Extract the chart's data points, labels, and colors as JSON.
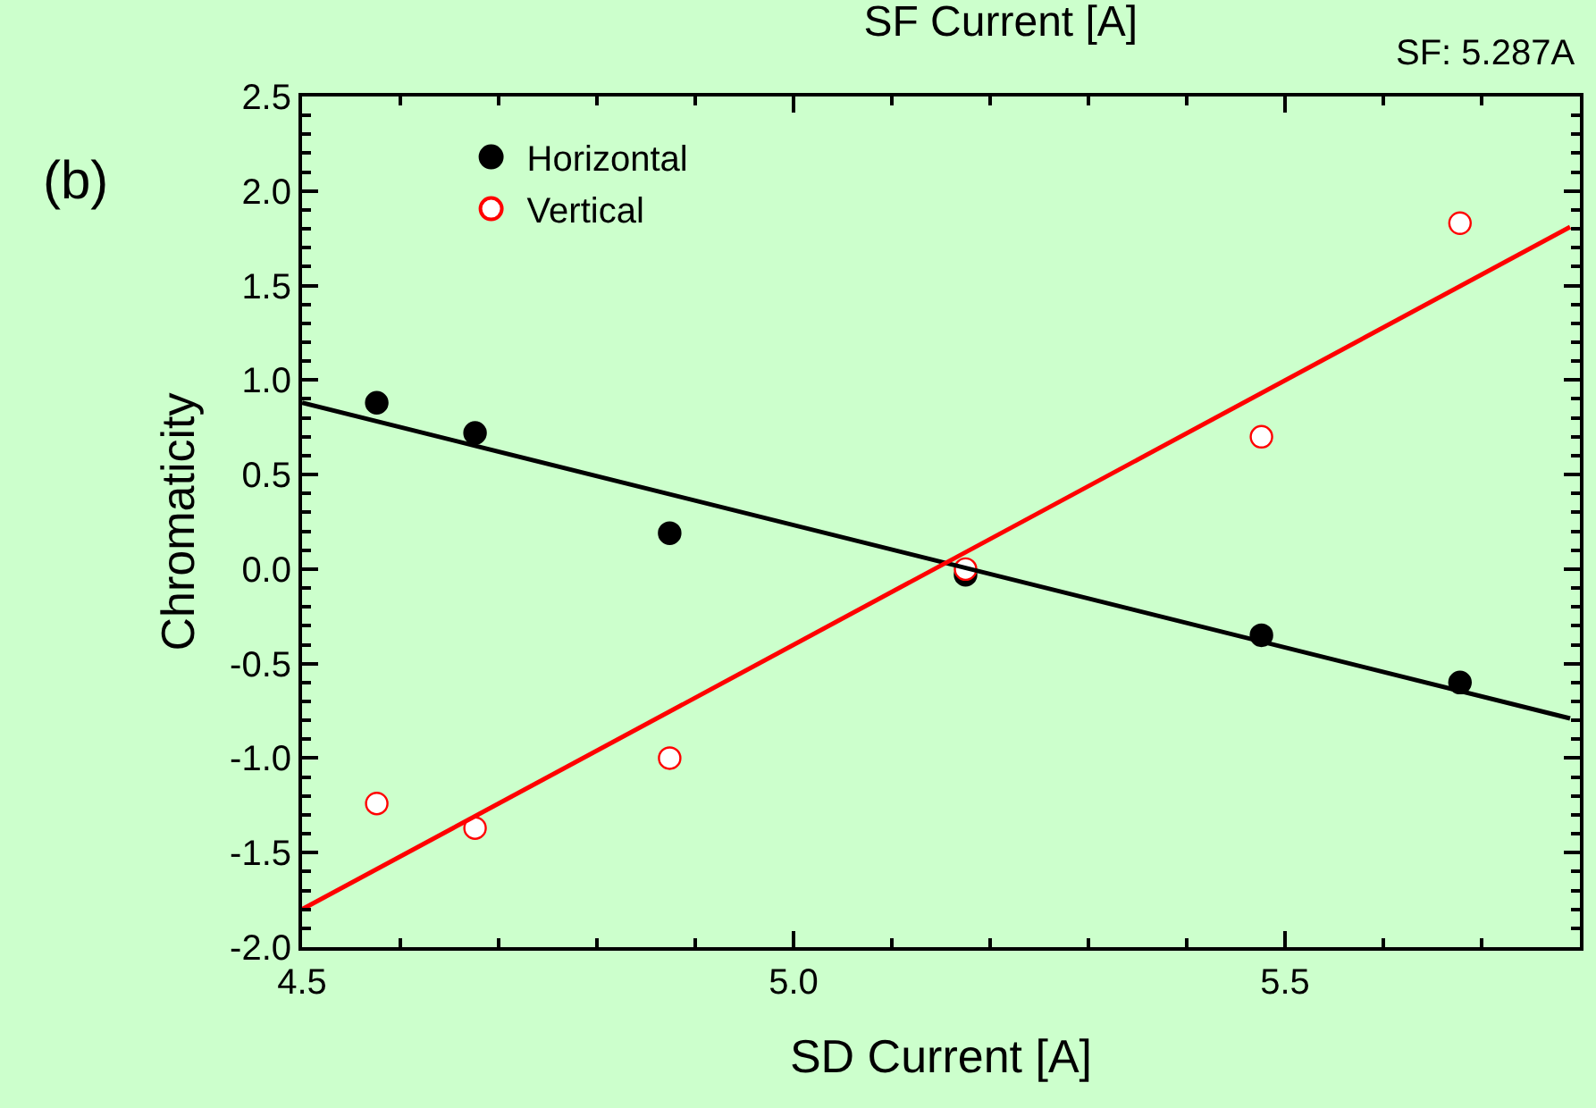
{
  "chart_data": {
    "type": "scatter",
    "title": "SF Current [A]",
    "xlabel": "SD Current [A]",
    "ylabel": "Chromaticity",
    "annotations": [
      "(b)",
      "SF: 5.287A"
    ],
    "series": [
      {
        "name": "Horizontal",
        "color": "#000000",
        "marker": "circle",
        "x": [
          4.576,
          4.676,
          4.874,
          5.175,
          5.476,
          5.678
        ],
        "values": [
          0.88,
          0.72,
          0.19,
          -0.03,
          -0.35,
          -0.6
        ]
      },
      {
        "name": "Vertical",
        "color": "#ff0000",
        "marker": "circle",
        "x": [
          4.576,
          4.676,
          4.874,
          5.175,
          5.476,
          5.678
        ],
        "values": [
          -1.24,
          -1.37,
          -1.0,
          0.0,
          0.7,
          1.83
        ]
      },
      {
        "type": "line",
        "color": "#000000",
        "marker": "none",
        "line_style": "solid",
        "x": [
          4.5,
          5.79
        ],
        "values": [
          0.88,
          -0.79
        ]
      },
      {
        "type": "line",
        "color": "#ff0000",
        "marker": "none",
        "line_style": "solid",
        "x": [
          4.5,
          5.79
        ],
        "values": [
          -1.8,
          1.81
        ]
      }
    ],
    "xlim": [
      4.5,
      5.8
    ],
    "xticks": [
      {
        "value": 4.5,
        "label": "4.5"
      },
      {
        "value": 5.0,
        "label": "5.0"
      },
      {
        "value": 5.5,
        "label": "5.5"
      }
    ],
    "ylim": [
      -2.0,
      2.5
    ],
    "yticks": [
      {
        "value": -2.0,
        "label": "-2.0"
      },
      {
        "value": -1.5,
        "label": "-1.5"
      },
      {
        "value": -1.0,
        "label": "-1.0"
      },
      {
        "value": -0.5,
        "label": "-0.5"
      },
      {
        "value": 0.0,
        "label": "0.0"
      },
      {
        "value": 0.5,
        "label": "0.5"
      },
      {
        "value": 1.0,
        "label": "1.0"
      },
      {
        "value": 1.5,
        "label": "1.5"
      },
      {
        "value": 2.0,
        "label": "2.0"
      },
      {
        "value": 2.5,
        "label": "2.5"
      }
    ],
    "grid": false,
    "legend": "top left"
  }
}
